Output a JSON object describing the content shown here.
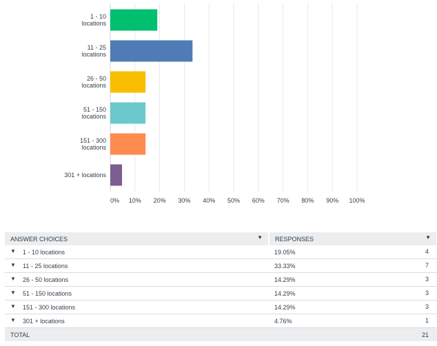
{
  "chart_data": {
    "type": "bar",
    "orientation": "horizontal",
    "categories": [
      [
        "1 - 10",
        "locations"
      ],
      [
        "11 - 25",
        "locations"
      ],
      [
        "26 - 50",
        "locations"
      ],
      [
        "51 - 150",
        "locations"
      ],
      [
        "151 - 300",
        "locations"
      ],
      [
        "301 + locations"
      ]
    ],
    "values": [
      19.05,
      33.33,
      14.29,
      14.29,
      14.29,
      4.76
    ],
    "colors": [
      "#00bf6f",
      "#507cb6",
      "#f9be00",
      "#6bc8cd",
      "#ff8b4f",
      "#7d5e90"
    ],
    "xlim": [
      0,
      100
    ],
    "xticks": [
      "0%",
      "10%",
      "20%",
      "30%",
      "40%",
      "50%",
      "60%",
      "70%",
      "80%",
      "90%",
      "100%"
    ],
    "grid": true
  },
  "table": {
    "headers": [
      "ANSWER CHOICES",
      "RESPONSES"
    ],
    "rows": [
      {
        "choice": "1 - 10 locations",
        "pct": "19.05%",
        "count": "4"
      },
      {
        "choice": "11 - 25 locations",
        "pct": "33.33%",
        "count": "7"
      },
      {
        "choice": "26 - 50 locations",
        "pct": "14.29%",
        "count": "3"
      },
      {
        "choice": "51 - 150 locations",
        "pct": "14.29%",
        "count": "3"
      },
      {
        "choice": "151 - 300 locations",
        "pct": "14.29%",
        "count": "3"
      },
      {
        "choice": "301 + locations",
        "pct": "4.76%",
        "count": "1"
      }
    ],
    "total_label": "TOTAL",
    "total_value": "21",
    "caret_glyph": "▼"
  }
}
